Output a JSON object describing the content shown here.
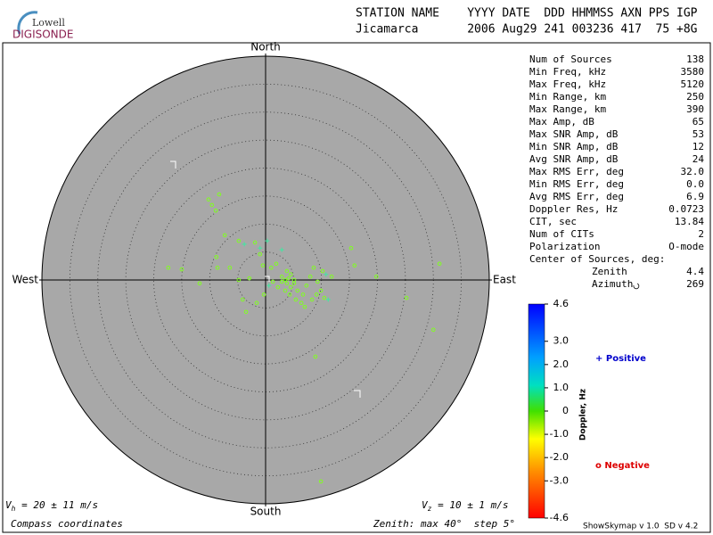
{
  "logo": {
    "top": "Lowell",
    "bottom": "DIGISONDE"
  },
  "header": {
    "line1": "STATION NAME    YYYY DATE  DDD HHMMSS AXN PPS IGP",
    "line2": "Jicamarca       2006 Aug29 241 003236 417  75 +8G"
  },
  "stats": [
    [
      "Num of Sources",
      "138"
    ],
    [
      "Min Freq, kHz",
      "3580"
    ],
    [
      "Max Freq, kHz",
      "5120"
    ],
    [
      "Min Range, km",
      "250"
    ],
    [
      "Max Range, km",
      "390"
    ],
    [
      "Max Amp, dB",
      "65"
    ],
    [
      "Max SNR Amp, dB",
      "53"
    ],
    [
      "Min SNR Amp, dB",
      "12"
    ],
    [
      "Avg SNR Amp, dB",
      "24"
    ],
    [
      "Max RMS Err, deg",
      "32.0"
    ],
    [
      "Min RMS Err, deg",
      "0.0"
    ],
    [
      "Avg RMS Err, deg",
      "6.9"
    ],
    [
      "Doppler Res, Hz",
      "0.0723"
    ],
    [
      "CIT, sec",
      "13.84"
    ],
    [
      "Num of CITs",
      "2"
    ],
    [
      "Polarization",
      "O-mode"
    ]
  ],
  "center": {
    "label": "Center of Sources, deg:",
    "rows": [
      [
        "Zenith",
        "4.4"
      ],
      [
        "Azimuth",
        "269"
      ]
    ]
  },
  "footer": {
    "vh_v": "V",
    "vh_sub": "h",
    "vh_text": " = 20 ± 11 m/s",
    "vz_v": "V",
    "vz_sub": "z",
    "vz_text": " = 10 ± 1 m/s",
    "coords": "Compass coordinates",
    "zenith": "Zenith: max 40°  step 5°",
    "version": "ShowSkymap v 1.0  SD v 4.2"
  },
  "chart_data": {
    "type": "skymap",
    "directions": {
      "north": "North",
      "south": "South",
      "east": "East",
      "west": "West"
    },
    "xlim": [
      -40,
      40
    ],
    "ylim": [
      -40,
      40
    ],
    "rticks": [
      5,
      10,
      15,
      20,
      25,
      30,
      35
    ],
    "series": [
      {
        "name": "Positive",
        "color": "#0000cc",
        "marker": "+",
        "marker_color": "#40e8a0",
        "x": [
          -3.8,
          -1.0,
          2.9,
          0.3,
          11.2,
          0.6,
          10.8
        ],
        "y": [
          6.4,
          5.7,
          5.4,
          7.0,
          -3.5,
          -1.0,
          1.0
        ]
      },
      {
        "name": "Negative",
        "color": "#dd0000",
        "marker": "o",
        "marker_color": "#80ff20",
        "x": [
          -10.2,
          -8.3,
          -9.6,
          -8.9,
          -17.4,
          -15.0,
          -11.8,
          -8.8,
          -8.6,
          -7.3,
          -4.8,
          -1.9,
          -1.0,
          1.0,
          1.9,
          3.8,
          2.9,
          3.8,
          4.5,
          5.1,
          5.7,
          6.7,
          7.3,
          8.0,
          8.6,
          9.3,
          9.9,
          10.2,
          11.8,
          15.3,
          15.9,
          19.8,
          25.2,
          30.0,
          31.1,
          8.9,
          9.9,
          -4.1,
          -3.5,
          -1.6,
          -0.3,
          1.3,
          2.2,
          3.5,
          4.3,
          5.4,
          6.4,
          7.0,
          8.3,
          9.1,
          -0.5,
          -2.9,
          -4.8,
          10.5,
          -6.4,
          4.5,
          5.1,
          2.9,
          3.5,
          4.1
        ],
        "y": [
          14.4,
          15.3,
          13.4,
          12.4,
          2.2,
          1.9,
          -0.6,
          4.1,
          2.2,
          8.0,
          7.0,
          6.7,
          4.6,
          2.2,
          2.9,
          1.6,
          0.6,
          -0.6,
          -1.3,
          0,
          -1.9,
          -2.6,
          -1.0,
          0.6,
          2.2,
          -0.3,
          -1.9,
          1.6,
          0.6,
          5.7,
          2.6,
          0.6,
          -3.2,
          -8.9,
          2.9,
          -13.7,
          -36.0,
          -3.5,
          -5.7,
          -4.1,
          -2.6,
          -0.3,
          -1.3,
          -1.9,
          -2.6,
          -3.5,
          -4.1,
          -4.8,
          -3.5,
          -2.6,
          2.6,
          0.3,
          0,
          -3.2,
          2.2,
          1.0,
          -0.6,
          -0.3,
          0,
          0.3
        ]
      }
    ],
    "colorbar": {
      "label": "Doppler, Hz",
      "clim": [
        -4.6,
        4.6
      ],
      "ticks": [
        4.6,
        {
          "value": 3,
          "label": "3.0"
        },
        {
          "value": 2,
          "label": "2.0"
        },
        {
          "value": 1,
          "label": "1.0"
        },
        0,
        {
          "value": -1,
          "label": "-1.0"
        },
        {
          "value": -2,
          "label": "-2.0"
        },
        {
          "value": -3,
          "label": "-3.0"
        },
        -4.6
      ]
    }
  }
}
